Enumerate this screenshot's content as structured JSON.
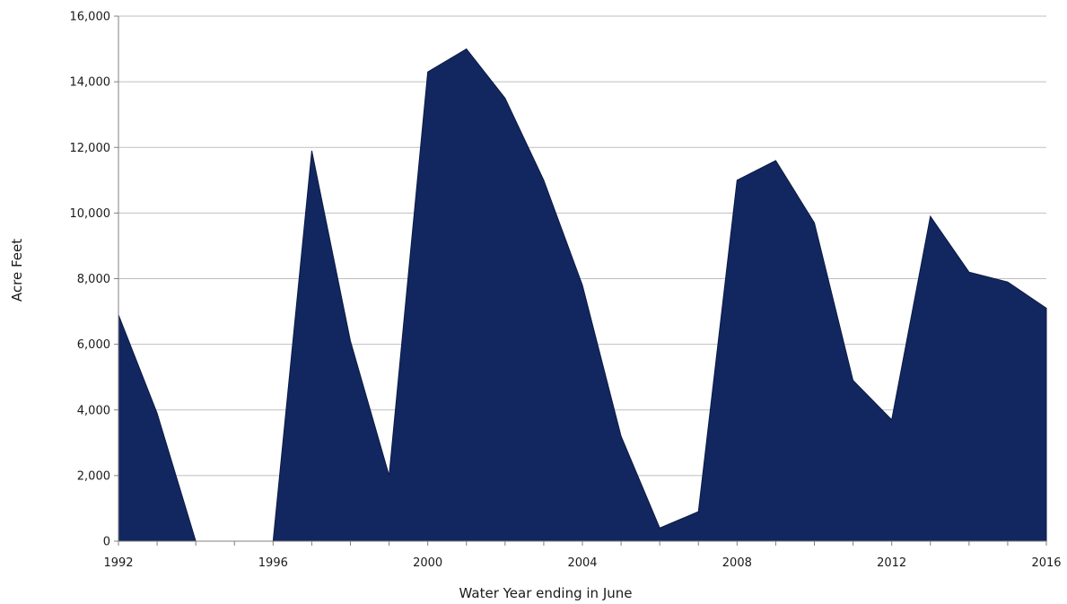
{
  "chart_data": {
    "type": "area",
    "title": "",
    "xlabel": "Water Year ending in June",
    "ylabel": "Acre Feet",
    "x": [
      1992,
      1993,
      1994,
      1995,
      1996,
      1997,
      1998,
      1999,
      2000,
      2001,
      2002,
      2003,
      2004,
      2005,
      2006,
      2007,
      2008,
      2009,
      2010,
      2011,
      2012,
      2013,
      2014,
      2015,
      2016
    ],
    "series": [
      {
        "values": [
          6900,
          3900,
          0,
          0,
          0,
          11900,
          6100,
          2000,
          14300,
          15000,
          13500,
          11000,
          7800,
          3200,
          400,
          900,
          11000,
          11600,
          9700,
          4900,
          3700,
          9900,
          8200,
          7900,
          7100
        ]
      }
    ],
    "xlim": [
      1992,
      2016
    ],
    "ylim": [
      0,
      16000
    ],
    "x_ticks": [
      "1992",
      "1996",
      "2000",
      "2004",
      "2008",
      "2012",
      "2016"
    ],
    "y_ticks": [
      "0",
      "2,000",
      "4,000",
      "6,000",
      "8,000",
      "10,000",
      "12,000",
      "14,000",
      "16,000"
    ],
    "grid": true,
    "legend": "none",
    "colors": {
      "fill": "#12275f",
      "edge": "#0b1a44",
      "grid": "#bfbfbf",
      "axis": "#808080"
    }
  }
}
